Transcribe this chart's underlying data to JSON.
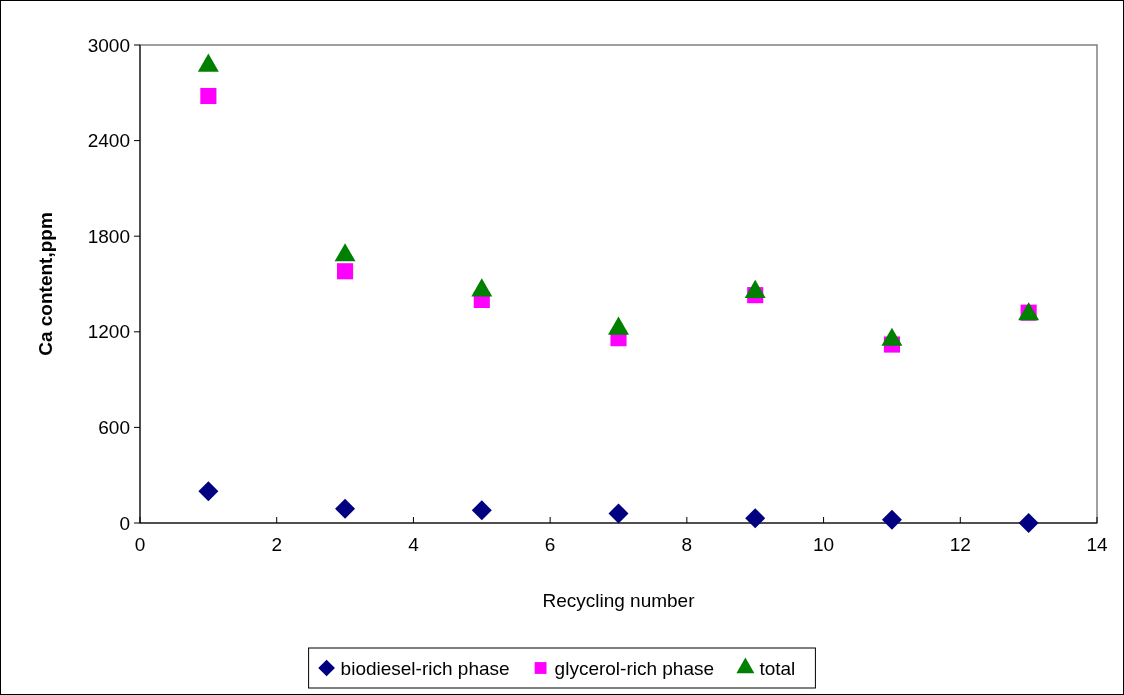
{
  "chart_data": {
    "type": "scatter",
    "xlabel": "Recycling number",
    "ylabel": "Ca content,ppm",
    "x": [
      1,
      3,
      5,
      7,
      9,
      11,
      13
    ],
    "series": [
      {
        "name": "biodiesel-rich phase",
        "color": "#000080",
        "marker": "diamond",
        "values": [
          200,
          90,
          80,
          60,
          30,
          20,
          0
        ]
      },
      {
        "name": "glycerol-rich phase",
        "color": "#ff00ff",
        "marker": "square",
        "values": [
          2680,
          1580,
          1400,
          1160,
          1430,
          1120,
          1320
        ]
      },
      {
        "name": "total",
        "color": "#008000",
        "marker": "triangle",
        "values": [
          2870,
          1680,
          1460,
          1220,
          1450,
          1150,
          1310
        ]
      }
    ],
    "xlim": [
      0,
      14
    ],
    "xticks": [
      0,
      2,
      4,
      6,
      8,
      10,
      12,
      14
    ],
    "ylim": [
      0,
      3000
    ],
    "yticks": [
      0,
      600,
      1200,
      1800,
      2400,
      3000
    ],
    "grid": false,
    "legend": "bottom"
  }
}
